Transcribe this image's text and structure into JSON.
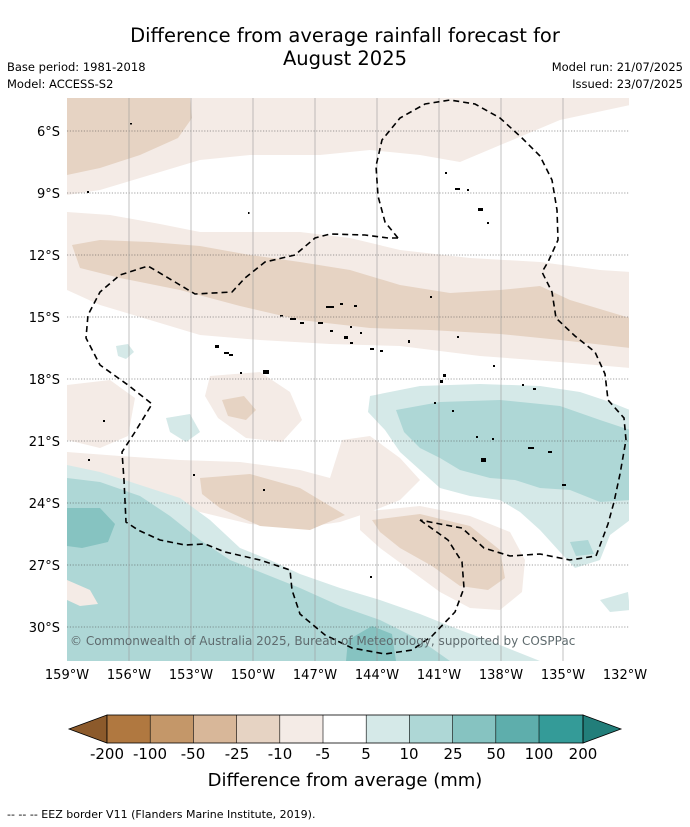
{
  "title_line1": "Difference from average rainfall forecast for",
  "title_line2": "August 2025",
  "meta": {
    "base_period": "Base period: 1981-2018",
    "model": "Model: ACCESS-S2",
    "model_run": "Model run: 21/07/2025",
    "issued": "Issued: 23/07/2025"
  },
  "lat_labels": [
    "6°S",
    "9°S",
    "12°S",
    "15°S",
    "18°S",
    "21°S",
    "24°S",
    "27°S",
    "30°S"
  ],
  "lon_labels": [
    "159°W",
    "156°W",
    "153°W",
    "150°W",
    "147°W",
    "144°W",
    "141°W",
    "138°W",
    "135°W",
    "132°W"
  ],
  "copyright": "© Commonwealth of Australia 2025, Bureau of Meteorology, supported by COSPPac",
  "colorbar": {
    "labels": [
      "-200",
      "-100",
      "-50",
      "-25",
      "-10",
      "-5",
      "5",
      "10",
      "25",
      "50",
      "100",
      "200"
    ],
    "colors": {
      "below_-200": "#8c5a2b",
      "-200_-100": "#b07840",
      "-100_-50": "#c49769",
      "-50_-25": "#d8b799",
      "-25_-10": "#e6d3c3",
      "-10_-5": "#f4ebe6",
      "-5_5": "#ffffff",
      "5_10": "#d5e9e8",
      "10_25": "#aed7d6",
      "25_50": "#86c3c1",
      "50_100": "#5eaeac",
      "100_200": "#349b98",
      "above_200": "#227e7a"
    },
    "title": "Difference from average (mm)"
  },
  "footnote": "--  --  -- EEZ border V11 (Flanders Marine Institute, 2019)."
}
